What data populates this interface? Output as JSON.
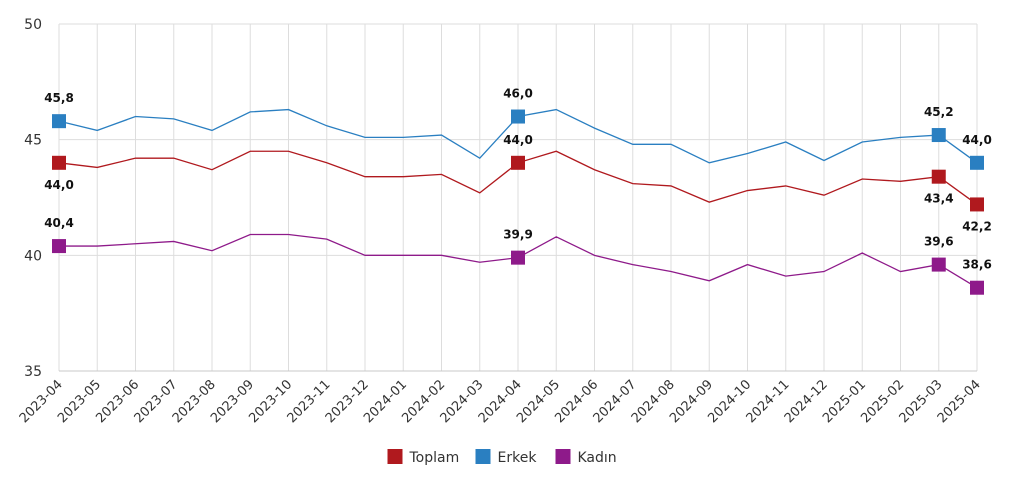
{
  "chart_data": {
    "type": "line",
    "x": [
      "2023-04",
      "2023-05",
      "2023-06",
      "2023-07",
      "2023-08",
      "2023-09",
      "2023-10",
      "2023-11",
      "2023-12",
      "2024-01",
      "2024-02",
      "2024-03",
      "2024-04",
      "2024-05",
      "2024-06",
      "2024-07",
      "2024-08",
      "2024-09",
      "2024-10",
      "2024-11",
      "2024-12",
      "2025-01",
      "2025-02",
      "2025-03",
      "2025-04"
    ],
    "ylim": [
      35,
      50
    ],
    "yticks": [
      35,
      40,
      45,
      50
    ],
    "ytick_labels": [
      "35",
      "40",
      "45",
      "50"
    ],
    "grid": true,
    "legend_position": "bottom",
    "series": [
      {
        "name": "Toplam",
        "color": "#b0191e",
        "values": [
          44.0,
          43.8,
          44.2,
          44.2,
          43.7,
          44.5,
          44.5,
          44.0,
          43.4,
          43.4,
          43.5,
          42.7,
          44.0,
          44.5,
          43.7,
          43.1,
          43.0,
          42.3,
          42.8,
          43.0,
          42.6,
          43.3,
          43.2,
          43.4,
          42.2
        ],
        "markers": [
          {
            "index": 0,
            "label": "44,0",
            "label_pos": "below"
          },
          {
            "index": 12,
            "label": "44,0",
            "label_pos": "above"
          },
          {
            "index": 23,
            "label": "43,4",
            "label_pos": "below"
          },
          {
            "index": 24,
            "label": "42,2",
            "label_pos": "below"
          }
        ]
      },
      {
        "name": "Erkek",
        "color": "#2a7fc1",
        "values": [
          45.8,
          45.4,
          46.0,
          45.9,
          45.4,
          46.2,
          46.3,
          45.6,
          45.1,
          45.1,
          45.2,
          44.2,
          46.0,
          46.3,
          45.5,
          44.8,
          44.8,
          44.0,
          44.4,
          44.9,
          44.1,
          44.9,
          45.1,
          45.2,
          44.0
        ],
        "markers": [
          {
            "index": 0,
            "label": "45,8",
            "label_pos": "above"
          },
          {
            "index": 12,
            "label": "46,0",
            "label_pos": "above"
          },
          {
            "index": 23,
            "label": "45,2",
            "label_pos": "above"
          },
          {
            "index": 24,
            "label": "44,0",
            "label_pos": "above"
          }
        ]
      },
      {
        "name": "Kadın",
        "color": "#8e1a8a",
        "values": [
          40.4,
          40.4,
          40.5,
          40.6,
          40.2,
          40.9,
          40.9,
          40.7,
          40.0,
          40.0,
          40.0,
          39.7,
          39.9,
          40.8,
          40.0,
          39.6,
          39.3,
          38.9,
          39.6,
          39.1,
          39.3,
          40.1,
          39.3,
          39.6,
          38.6
        ],
        "markers": [
          {
            "index": 0,
            "label": "40,4",
            "label_pos": "above"
          },
          {
            "index": 12,
            "label": "39,9",
            "label_pos": "above"
          },
          {
            "index": 23,
            "label": "39,6",
            "label_pos": "above"
          },
          {
            "index": 24,
            "label": "38,6",
            "label_pos": "above"
          }
        ]
      }
    ]
  }
}
